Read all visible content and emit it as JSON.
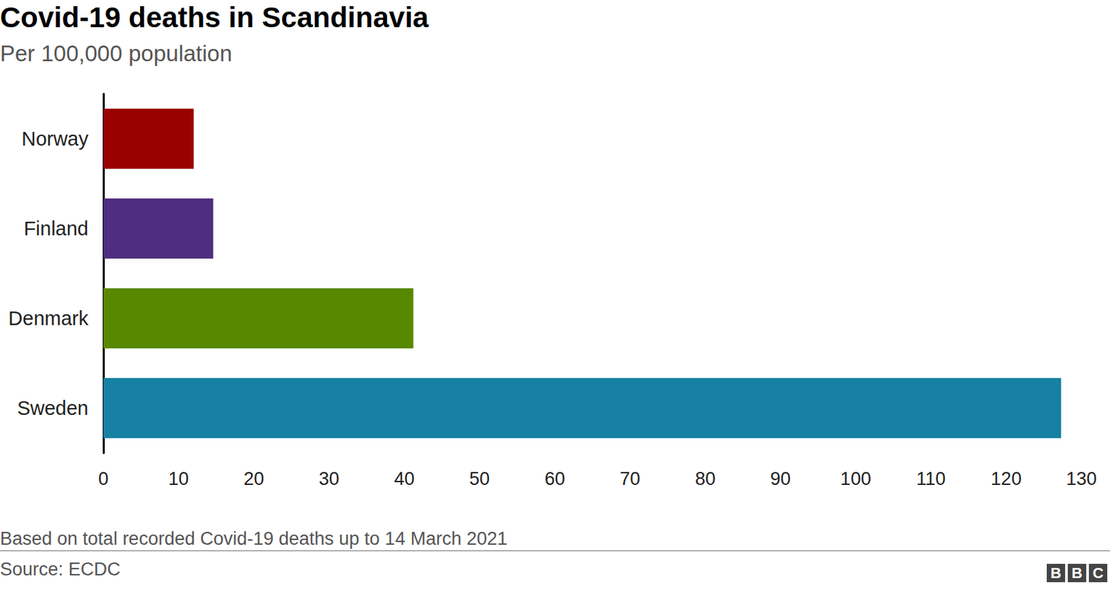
{
  "chart_data": {
    "type": "bar",
    "orientation": "horizontal",
    "title": "Covid-19 deaths in Scandinavia",
    "subtitle": "Per 100,000 population",
    "categories": [
      "Norway",
      "Finland",
      "Denmark",
      "Sweden"
    ],
    "values": [
      12,
      14.6,
      41.2,
      127.3
    ],
    "colors": [
      "#990000",
      "#4f2d7f",
      "#588700",
      "#1681a2"
    ],
    "xlim": [
      0,
      130
    ],
    "xticks": [
      0,
      10,
      20,
      30,
      40,
      50,
      60,
      70,
      80,
      90,
      100,
      110,
      120,
      130
    ],
    "grid": false,
    "note": "Based on total recorded Covid-19 deaths up to 14 March 2021",
    "source": "Source: ECDC",
    "logo": "BBC"
  }
}
